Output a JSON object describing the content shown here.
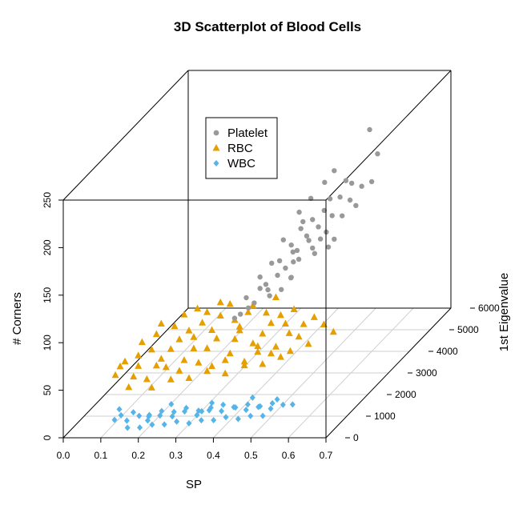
{
  "chart_data": {
    "type": "scatter",
    "subtype": "3d-scatter",
    "title": "3D Scatterplot of Blood Cells",
    "xlabel": "SP",
    "ylabel": "1st Eigenvalue",
    "zlabel": "# Corners",
    "xlim": [
      0.0,
      0.7
    ],
    "ylim": [
      0,
      6000
    ],
    "zlim": [
      0,
      250
    ],
    "x_ticks": [
      "0.0",
      "0.1",
      "0.2",
      "0.3",
      "0.4",
      "0.5",
      "0.6",
      "0.7"
    ],
    "y_ticks": [
      "0",
      "1000",
      "2000",
      "3000",
      "4000",
      "5000",
      "6000"
    ],
    "z_ticks": [
      "0",
      "50",
      "100",
      "150",
      "200",
      "250"
    ],
    "grid": true,
    "legend_position": "top-left",
    "series": [
      {
        "name": "Platelet",
        "marker": "circle",
        "color": "#999999",
        "points": [
          [
            0.55,
            4800,
            215
          ],
          [
            0.5,
            4000,
            190
          ],
          [
            0.48,
            3900,
            180
          ],
          [
            0.52,
            4200,
            175
          ],
          [
            0.46,
            3600,
            170
          ],
          [
            0.5,
            3800,
            165
          ],
          [
            0.44,
            3400,
            160
          ],
          [
            0.53,
            4300,
            170
          ],
          [
            0.47,
            3500,
            150
          ],
          [
            0.42,
            3000,
            140
          ],
          [
            0.45,
            3300,
            145
          ],
          [
            0.49,
            3700,
            155
          ],
          [
            0.51,
            4100,
            160
          ],
          [
            0.43,
            3200,
            130
          ],
          [
            0.4,
            2800,
            120
          ],
          [
            0.38,
            2600,
            110
          ],
          [
            0.44,
            3100,
            125
          ],
          [
            0.46,
            3400,
            135
          ],
          [
            0.48,
            3600,
            140
          ],
          [
            0.5,
            3900,
            145
          ],
          [
            0.41,
            2900,
            105
          ],
          [
            0.39,
            2700,
            100
          ],
          [
            0.45,
            3200,
            115
          ],
          [
            0.47,
            3500,
            120
          ],
          [
            0.36,
            2300,
            95
          ],
          [
            0.42,
            2900,
            90
          ],
          [
            0.44,
            3000,
            100
          ],
          [
            0.37,
            2500,
            85
          ],
          [
            0.52,
            4400,
            150
          ],
          [
            0.54,
            4600,
            160
          ],
          [
            0.49,
            3800,
            130
          ],
          [
            0.43,
            3300,
            110
          ],
          [
            0.35,
            2200,
            80
          ],
          [
            0.4,
            2700,
            88
          ],
          [
            0.48,
            3700,
            125
          ],
          [
            0.46,
            3500,
            128
          ],
          [
            0.56,
            5000,
            185
          ],
          [
            0.45,
            3400,
            150
          ],
          [
            0.41,
            3000,
            118
          ],
          [
            0.39,
            2800,
            92
          ],
          [
            0.51,
            4200,
            138
          ],
          [
            0.53,
            4500,
            142
          ],
          [
            0.42,
            3100,
            108
          ],
          [
            0.38,
            2600,
            98
          ],
          [
            0.47,
            3600,
            112
          ],
          [
            0.44,
            3300,
            122
          ],
          [
            0.5,
            4000,
            118
          ],
          [
            0.34,
            2100,
            78
          ],
          [
            0.36,
            2400,
            82
          ],
          [
            0.43,
            3200,
            96
          ],
          [
            0.55,
            4900,
            158
          ],
          [
            0.49,
            3900,
            112
          ]
        ]
      },
      {
        "name": "RBC",
        "marker": "triangle",
        "color": "#E69F00",
        "points": [
          [
            0.12,
            800,
            62
          ],
          [
            0.15,
            900,
            55
          ],
          [
            0.18,
            1000,
            70
          ],
          [
            0.2,
            1100,
            58
          ],
          [
            0.22,
            1200,
            66
          ],
          [
            0.25,
            1300,
            52
          ],
          [
            0.27,
            1400,
            74
          ],
          [
            0.3,
            1500,
            60
          ],
          [
            0.32,
            1600,
            68
          ],
          [
            0.35,
            1700,
            50
          ],
          [
            0.37,
            1800,
            72
          ],
          [
            0.4,
            1900,
            56
          ],
          [
            0.42,
            2000,
            64
          ],
          [
            0.45,
            2100,
            48
          ],
          [
            0.47,
            2200,
            70
          ],
          [
            0.5,
            2300,
            54
          ],
          [
            0.14,
            850,
            45
          ],
          [
            0.17,
            950,
            40
          ],
          [
            0.21,
            1150,
            48
          ],
          [
            0.24,
            1250,
            42
          ],
          [
            0.28,
            1450,
            46
          ],
          [
            0.31,
            1550,
            40
          ],
          [
            0.34,
            1650,
            44
          ],
          [
            0.38,
            1850,
            38
          ],
          [
            0.41,
            1950,
            46
          ],
          [
            0.44,
            2050,
            42
          ],
          [
            0.48,
            2250,
            40
          ],
          [
            0.52,
            2400,
            44
          ],
          [
            0.16,
            900,
            80
          ],
          [
            0.19,
            1050,
            85
          ],
          [
            0.23,
            1200,
            90
          ],
          [
            0.26,
            1350,
            82
          ],
          [
            0.29,
            1450,
            88
          ],
          [
            0.33,
            1600,
            92
          ],
          [
            0.36,
            1750,
            84
          ],
          [
            0.39,
            1850,
            90
          ],
          [
            0.43,
            2000,
            86
          ],
          [
            0.46,
            2150,
            80
          ],
          [
            0.49,
            2250,
            84
          ],
          [
            0.13,
            800,
            35
          ],
          [
            0.18,
            1000,
            30
          ],
          [
            0.22,
            1200,
            34
          ],
          [
            0.26,
            1350,
            32
          ],
          [
            0.3,
            1500,
            36
          ],
          [
            0.34,
            1650,
            30
          ],
          [
            0.38,
            1850,
            34
          ],
          [
            0.42,
            2000,
            32
          ],
          [
            0.46,
            2150,
            36
          ],
          [
            0.2,
            1100,
            95
          ],
          [
            0.25,
            1300,
            100
          ],
          [
            0.3,
            1500,
            98
          ],
          [
            0.35,
            1700,
            102
          ],
          [
            0.4,
            1900,
            96
          ],
          [
            0.45,
            2100,
            100
          ],
          [
            0.28,
            1400,
            104
          ],
          [
            0.33,
            1600,
            106
          ],
          [
            0.55,
            2600,
            60
          ],
          [
            0.57,
            2700,
            50
          ],
          [
            0.53,
            2500,
            70
          ],
          [
            0.1,
            700,
            50
          ],
          [
            0.11,
            750,
            58
          ],
          [
            0.24,
            1250,
            75
          ],
          [
            0.31,
            1550,
            78
          ],
          [
            0.37,
            1800,
            76
          ],
          [
            0.44,
            2050,
            74
          ],
          [
            0.51,
            2350,
            66
          ],
          [
            0.15,
            900,
            66
          ],
          [
            0.27,
            1400,
            62
          ],
          [
            0.36,
            1750,
            64
          ],
          [
            0.48,
            2200,
            60
          ],
          [
            0.19,
            1050,
            52
          ],
          [
            0.41,
            1950,
            52
          ]
        ]
      },
      {
        "name": "WBC",
        "marker": "diamond",
        "color": "#56B4E9",
        "points": [
          [
            0.12,
            300,
            12
          ],
          [
            0.15,
            350,
            10
          ],
          [
            0.18,
            400,
            14
          ],
          [
            0.2,
            450,
            8
          ],
          [
            0.23,
            500,
            12
          ],
          [
            0.26,
            550,
            10
          ],
          [
            0.29,
            600,
            14
          ],
          [
            0.32,
            650,
            9
          ],
          [
            0.35,
            700,
            13
          ],
          [
            0.38,
            750,
            11
          ],
          [
            0.41,
            800,
            14
          ],
          [
            0.44,
            850,
            10
          ],
          [
            0.47,
            900,
            12
          ],
          [
            0.5,
            950,
            9
          ],
          [
            0.53,
            1000,
            12
          ],
          [
            0.14,
            250,
            18
          ],
          [
            0.17,
            300,
            20
          ],
          [
            0.21,
            350,
            16
          ],
          [
            0.24,
            400,
            19
          ],
          [
            0.27,
            450,
            17
          ],
          [
            0.3,
            500,
            20
          ],
          [
            0.33,
            550,
            16
          ],
          [
            0.36,
            600,
            18
          ],
          [
            0.39,
            650,
            20
          ],
          [
            0.42,
            700,
            16
          ],
          [
            0.45,
            750,
            18
          ],
          [
            0.48,
            800,
            15
          ],
          [
            0.51,
            850,
            17
          ],
          [
            0.16,
            200,
            6
          ],
          [
            0.19,
            250,
            5
          ],
          [
            0.22,
            300,
            7
          ],
          [
            0.25,
            350,
            6
          ],
          [
            0.28,
            400,
            8
          ],
          [
            0.31,
            450,
            5
          ],
          [
            0.34,
            500,
            7
          ],
          [
            0.37,
            550,
            6
          ],
          [
            0.4,
            600,
            8
          ],
          [
            0.43,
            650,
            5
          ],
          [
            0.46,
            700,
            7
          ],
          [
            0.49,
            750,
            6
          ],
          [
            0.55,
            1100,
            10
          ],
          [
            0.13,
            350,
            22
          ],
          [
            0.26,
            500,
            24
          ],
          [
            0.36,
            650,
            22
          ],
          [
            0.46,
            800,
            24
          ],
          [
            0.52,
            900,
            20
          ],
          [
            0.2,
            500,
            11
          ],
          [
            0.33,
            700,
            12
          ]
        ]
      }
    ]
  }
}
